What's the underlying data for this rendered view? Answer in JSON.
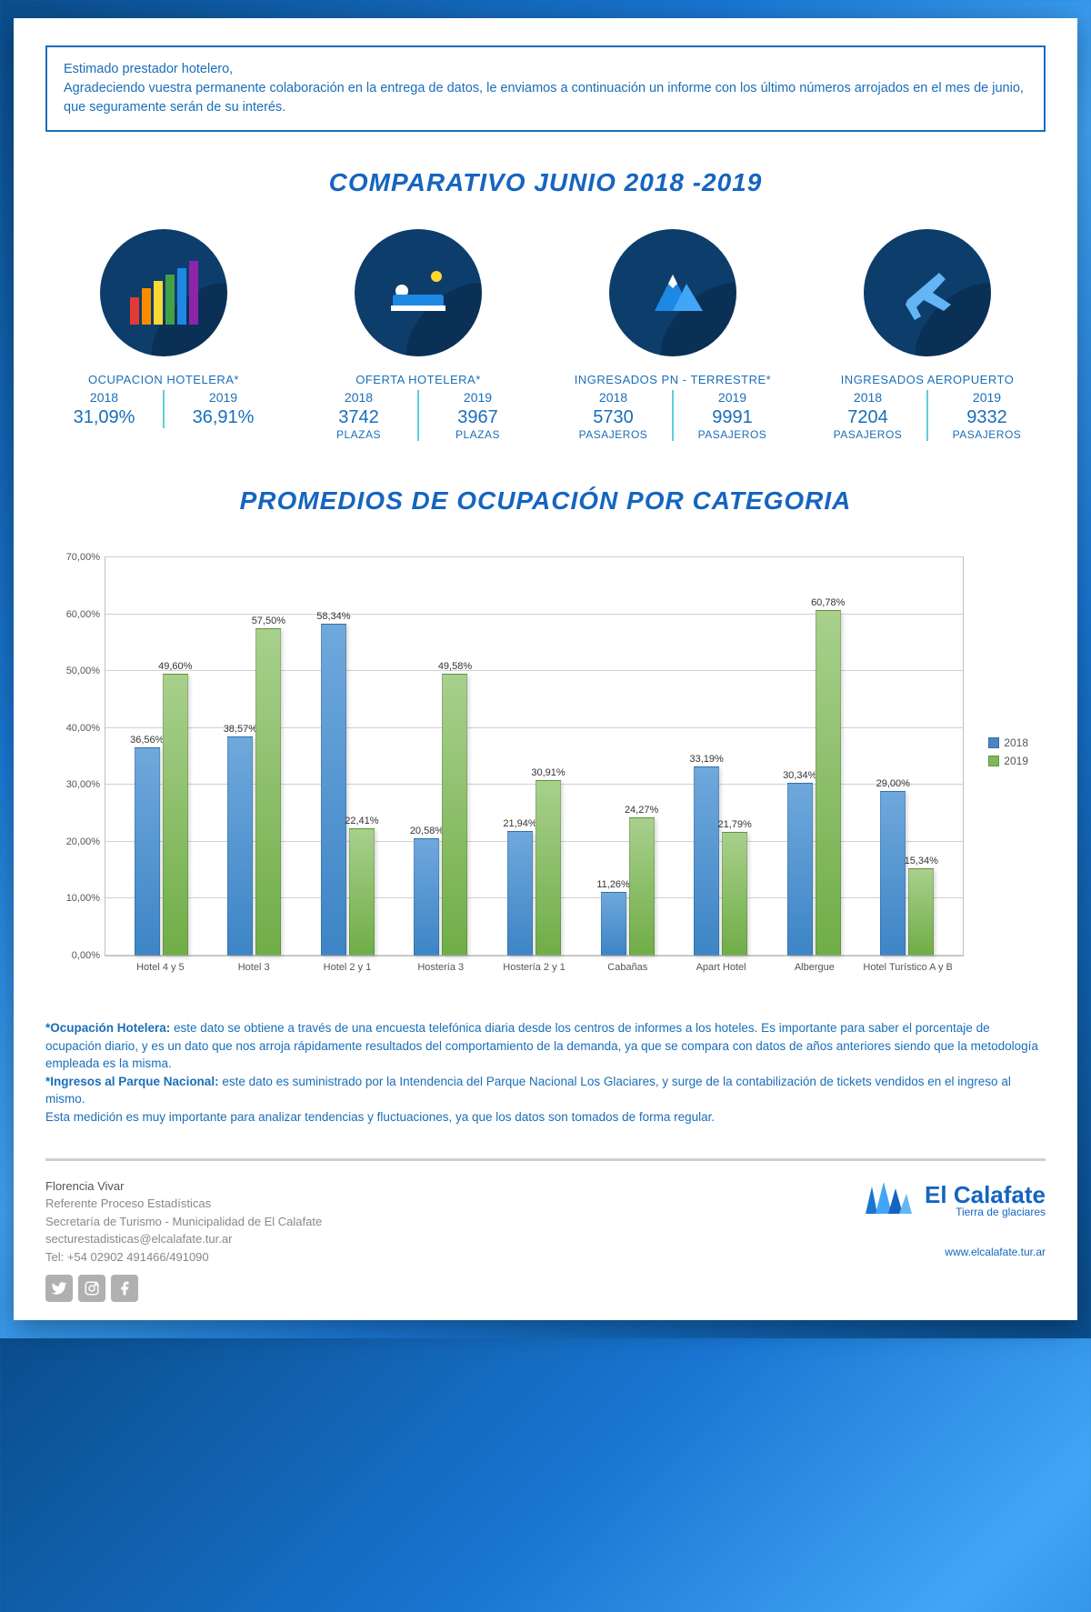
{
  "intro": {
    "greeting": "Estimado prestador hotelero,",
    "body": "Agradeciendo vuestra permanente colaboración en la entrega de datos, le enviamos a continuación un informe con los último números arrojados en el mes de junio, que seguramente serán de su interés."
  },
  "title_comparativo": "COMPARATIVO JUNIO 2018 -2019",
  "stats": [
    {
      "label": "OCUPACION HOTELERA*",
      "y2018": "2018",
      "v2018": "31,09%",
      "u2018": "",
      "y2019": "2019",
      "v2019": "36,91%",
      "u2019": ""
    },
    {
      "label": "OFERTA HOTELERA*",
      "y2018": "2018",
      "v2018": "3742",
      "u2018": "PLAZAS",
      "y2019": "2019",
      "v2019": "3967",
      "u2019": "PLAZAS"
    },
    {
      "label": "INGRESADOS PN - TERRESTRE*",
      "y2018": "2018",
      "v2018": "5730",
      "u2018": "PASAJEROS",
      "y2019": "2019",
      "v2019": "9991",
      "u2019": "PASAJEROS"
    },
    {
      "label": "INGRESADOS AEROPUERTO",
      "y2018": "2018",
      "v2018": "7204",
      "u2018": "PASAJEROS",
      "y2019": "2019",
      "v2019": "9332",
      "u2019": "PASAJEROS"
    }
  ],
  "title_chart": "PROMEDIOS DE OCUPACIÓN POR CATEGORIA",
  "chart": {
    "type": "bar",
    "ylim": [
      0,
      70
    ],
    "ytick_step": 10,
    "ytick_labels": [
      "0,00%",
      "10,00%",
      "20,00%",
      "30,00%",
      "40,00%",
      "50,00%",
      "60,00%",
      "70,00%"
    ],
    "series_colors": {
      "2018": "#4a86c6",
      "2019": "#7fb956"
    },
    "legend": [
      "2018",
      "2019"
    ],
    "categories": [
      "Hotel 4 y 5",
      "Hotel 3",
      "Hotel 2 y 1",
      "Hostería 3",
      "Hostería 2 y 1",
      "Cabañas",
      "Apart Hotel",
      "Albergue",
      "Hotel Turístico A y B"
    ],
    "values_2018": [
      36.56,
      38.57,
      58.34,
      20.58,
      21.94,
      11.26,
      33.19,
      30.34,
      29.0
    ],
    "values_2019": [
      49.6,
      57.5,
      22.41,
      49.58,
      30.91,
      24.27,
      21.79,
      60.78,
      15.34
    ],
    "labels_2018": [
      "36,56%",
      "38,57%",
      "58,34%",
      "20,58%",
      "21,94%",
      "11,26%",
      "33,19%",
      "30,34%",
      "29,00%"
    ],
    "labels_2019": [
      "49,60%",
      "57,50%",
      "22,41%",
      "49,58%",
      "30,91%",
      "24,27%",
      "21,79%",
      "60,78%",
      "15,34%"
    ],
    "grid_color": "#d0d0d0",
    "background_color": "#ffffff"
  },
  "notes": {
    "t1": "*Ocupación Hotelera:",
    "b1": " este dato se obtiene a través de una encuesta telefónica diaria desde los centros de informes a los hoteles. Es importante para saber el porcentaje de ocupación diario, y es un dato que nos arroja rápidamente resultados del comportamiento de la demanda, ya que se compara con datos de años anteriores siendo que la metodología empleada es la misma.",
    "t2": "*Ingresos al Parque Nacional:",
    "b2": " este dato es suministrado por la Intendencia del Parque Nacional Los Glaciares, y surge de la contabilización de tickets vendidos en el ingreso al mismo.",
    "b3": "Esta medición es muy importante para analizar tendencias y fluctuaciones, ya que los datos son tomados de forma regular."
  },
  "footer": {
    "name": "Florencia Vivar",
    "role": "Referente Proceso Estadísticas",
    "org": "Secretaría de Turismo - Municipalidad de El Calafate",
    "email": "secturestadisticas@elcalafate.tur.ar",
    "tel": "Tel: +54 02902 491466/491090",
    "brand_name": "El Calafate",
    "brand_tag": "Tierra de glaciares",
    "url": "www.elcalafate.tur.ar"
  }
}
